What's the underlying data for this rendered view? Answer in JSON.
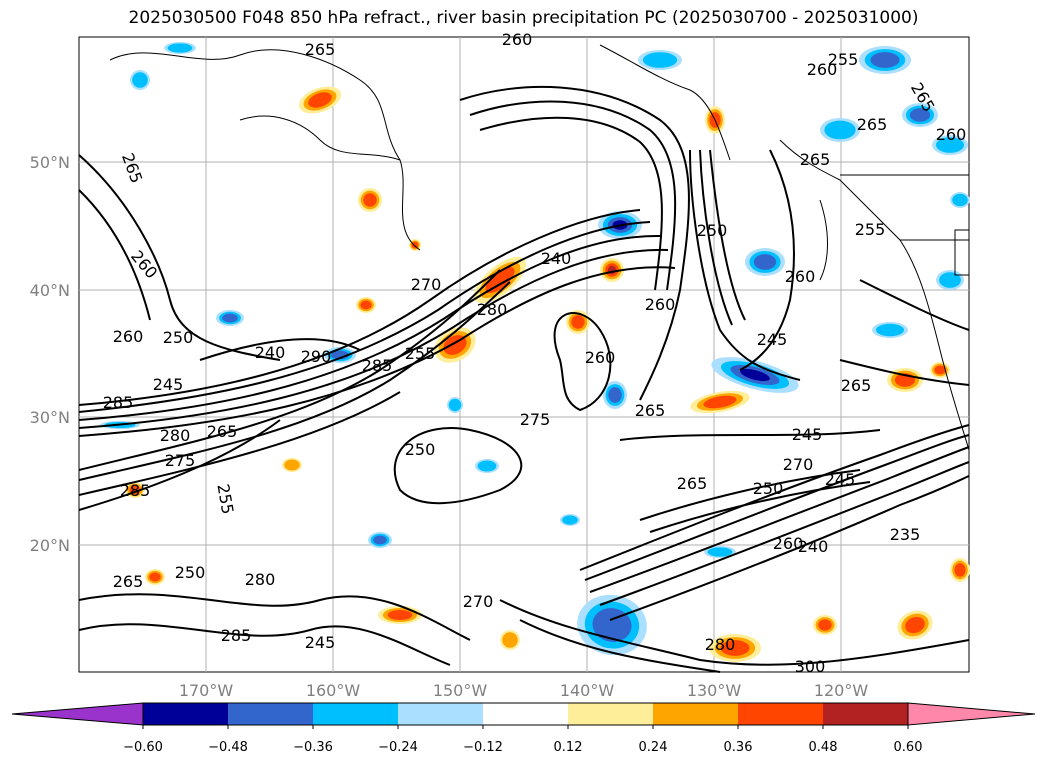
{
  "title": "2025030500 F048 850 hPa refract., river basin precipitation PC (2025030700 - 2025031000)",
  "lat_labels": [
    "50°N",
    "40°N",
    "30°N",
    "20°N"
  ],
  "lon_labels": [
    "170°W",
    "160°W",
    "150°W",
    "140°W",
    "130°W",
    "120°W"
  ],
  "colorbar": {
    "ticks": [
      "−0.60",
      "−0.48",
      "−0.36",
      "−0.24",
      "−0.12",
      "0.12",
      "0.24",
      "0.36",
      "0.48",
      "0.60"
    ],
    "colors": [
      "#9933cc",
      "#000099",
      "#3366cc",
      "#00bfff",
      "#aadfff",
      "#ffffff",
      "#ffee99",
      "#ffa500",
      "#ff4500",
      "#b22222",
      "#ff88aa"
    ]
  },
  "contour_labels": [
    "265",
    "260",
    "265",
    "260",
    "255",
    "265",
    "265",
    "260",
    "265",
    "255",
    "260",
    "250",
    "260",
    "240",
    "245",
    "285",
    "280",
    "265",
    "275",
    "255",
    "270",
    "285",
    "280",
    "290",
    "285",
    "280",
    "250",
    "265",
    "285",
    "245",
    "275",
    "245",
    "270",
    "250",
    "260",
    "255",
    "245",
    "240",
    "260",
    "265",
    "270",
    "250",
    "245",
    "260",
    "240",
    "235",
    "265",
    "265",
    "260",
    "250",
    "300",
    "280"
  ]
}
